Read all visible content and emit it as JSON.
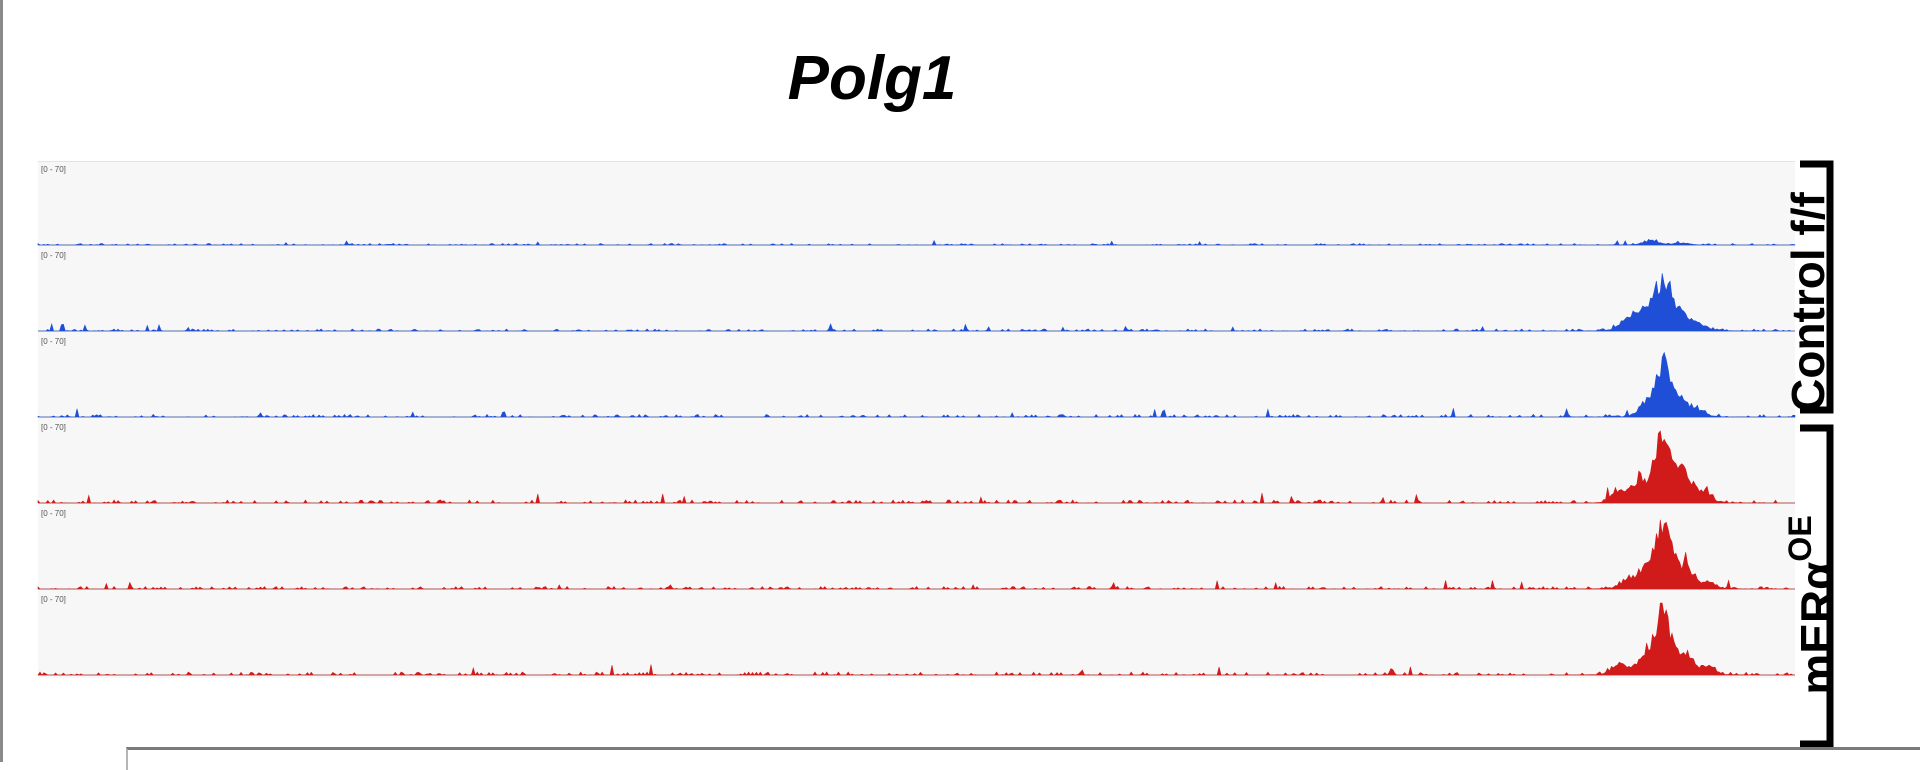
{
  "title": "Polg1",
  "track_range_label": "[0 - 70]",
  "groups": [
    {
      "label": "Control f/f",
      "tracks": [
        0,
        1,
        2
      ]
    },
    {
      "label": "mERα",
      "superscript": "OE",
      "tracks": [
        3,
        4,
        5
      ]
    }
  ],
  "colors": {
    "control": "#1f4fd6",
    "mera": "#d11a1a",
    "track_bg": "#f7f7f7",
    "baseline": "#b0b0b0"
  },
  "chart_data": {
    "type": "area",
    "title": "Polg1",
    "ylim": [
      0,
      70
    ],
    "x_range": [
      0,
      1
    ],
    "series": [
      {
        "group": "Control f/f",
        "peaks": [
          [
            0.918,
            4
          ],
          [
            0.935,
            2
          ]
        ],
        "noise": 1.5
      },
      {
        "group": "Control f/f",
        "peaks": [
          [
            0.905,
            12
          ],
          [
            0.915,
            20
          ],
          [
            0.925,
            47
          ],
          [
            0.935,
            18
          ],
          [
            0.945,
            6
          ]
        ],
        "noise": 2
      },
      {
        "group": "Control f/f",
        "peaks": [
          [
            0.915,
            10
          ],
          [
            0.925,
            48
          ],
          [
            0.935,
            14
          ],
          [
            0.945,
            5
          ]
        ],
        "noise": 2.5
      },
      {
        "group": "mERα OE",
        "peaks": [
          [
            0.9,
            12
          ],
          [
            0.912,
            22
          ],
          [
            0.925,
            68
          ],
          [
            0.937,
            30
          ],
          [
            0.948,
            10
          ]
        ],
        "noise": 3
      },
      {
        "group": "mERα OE",
        "peaks": [
          [
            0.905,
            8
          ],
          [
            0.915,
            14
          ],
          [
            0.925,
            62
          ],
          [
            0.937,
            22
          ],
          [
            0.95,
            6
          ]
        ],
        "noise": 2.5
      },
      {
        "group": "mERα OE",
        "peaks": [
          [
            0.9,
            10
          ],
          [
            0.915,
            18
          ],
          [
            0.925,
            60
          ],
          [
            0.937,
            20
          ],
          [
            0.95,
            8
          ]
        ],
        "noise": 3
      }
    ]
  }
}
